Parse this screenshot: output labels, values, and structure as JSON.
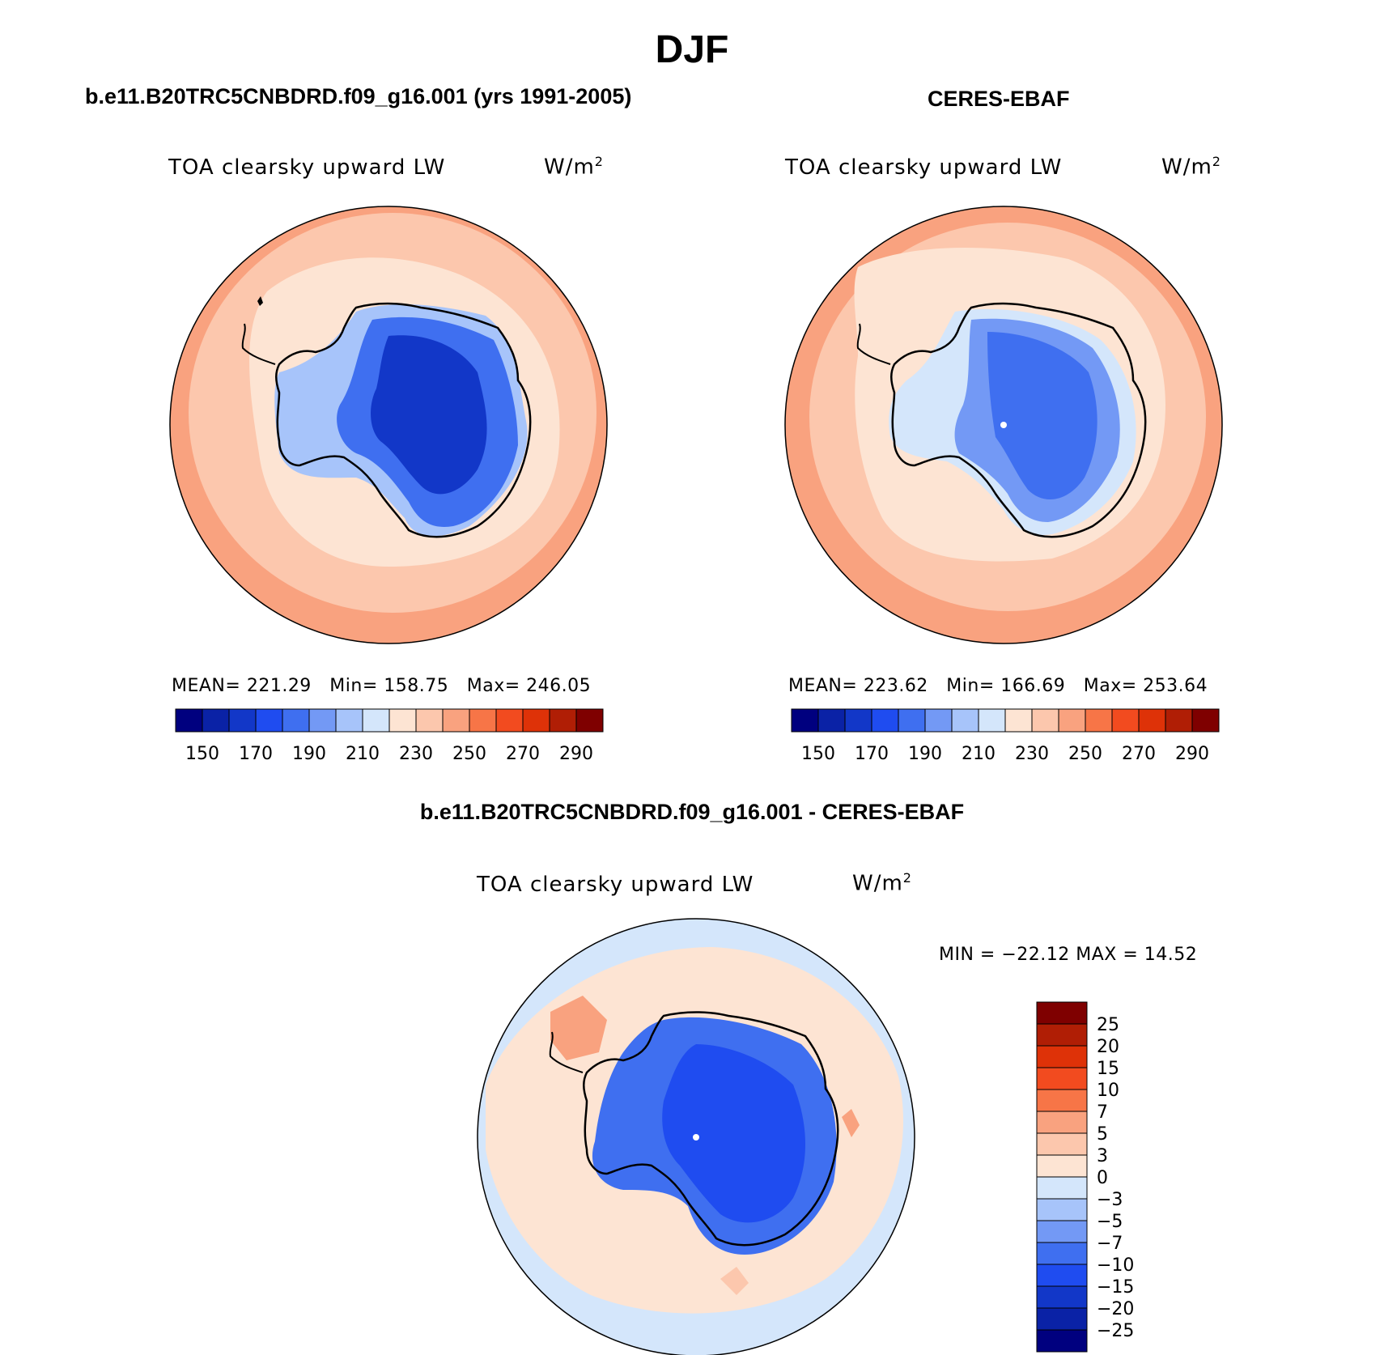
{
  "header": {
    "title": "DJF"
  },
  "panels": {
    "model": {
      "title": "b.e11.B20TRC5CNBDRD.f09_g16.001 (yrs 1991-2005)",
      "variable": "TOA clearsky upward LW",
      "units": "W/m",
      "units_exp": "2",
      "stats": {
        "mean_label": "MEAN=",
        "mean": "221.29",
        "min_label": "Min=",
        "min": "158.75",
        "max_label": "Max=",
        "max": "246.05"
      }
    },
    "obs": {
      "title": "CERES-EBAF",
      "variable": "TOA clearsky upward LW",
      "units": "W/m",
      "units_exp": "2",
      "stats": {
        "mean_label": "MEAN=",
        "mean": "223.62",
        "min_label": "Min=",
        "min": "166.69",
        "max_label": "Max=",
        "max": "253.64"
      }
    },
    "diff": {
      "title": "b.e11.B20TRC5CNBDRD.f09_g16.001 - CERES-EBAF",
      "variable": "TOA clearsky upward LW",
      "units": "W/m",
      "units_exp": "2",
      "minmax": "MIN = −22.12 MAX =  14.52"
    }
  },
  "chart_data": [
    {
      "type": "heatmap",
      "projection": "south-polar-stereographic",
      "title": "b.e11.B20TRC5CNBDRD.f09_g16.001 (yrs 1991-2005)",
      "variable": "TOA clearsky upward LW",
      "units": "W/m2",
      "mean": 221.29,
      "min": 158.75,
      "max": 246.05,
      "levels": [
        150,
        160,
        170,
        180,
        190,
        200,
        210,
        220,
        230,
        240,
        250,
        260,
        270,
        280,
        290
      ],
      "colorbar_ticks": [
        "150",
        "170",
        "190",
        "210",
        "230",
        "250",
        "270",
        "290"
      ]
    },
    {
      "type": "heatmap",
      "projection": "south-polar-stereographic",
      "title": "CERES-EBAF",
      "variable": "TOA clearsky upward LW",
      "units": "W/m2",
      "mean": 223.62,
      "min": 166.69,
      "max": 253.64,
      "levels": [
        150,
        160,
        170,
        180,
        190,
        200,
        210,
        220,
        230,
        240,
        250,
        260,
        270,
        280,
        290
      ],
      "colorbar_ticks": [
        "150",
        "170",
        "190",
        "210",
        "230",
        "250",
        "270",
        "290"
      ]
    },
    {
      "type": "heatmap",
      "projection": "south-polar-stereographic",
      "title": "b.e11.B20TRC5CNBDRD.f09_g16.001 - CERES-EBAF",
      "variable": "TOA clearsky upward LW",
      "units": "W/m2",
      "min": -22.12,
      "max": 14.52,
      "levels": [
        -25,
        -20,
        -15,
        -10,
        -7,
        -5,
        -3,
        0,
        3,
        5,
        7,
        10,
        15,
        20,
        25
      ],
      "colorbar_ticks": [
        "25",
        "20",
        "15",
        "10",
        "7",
        "5",
        "3",
        "0",
        "−3",
        "−5",
        "−7",
        "−10",
        "−15",
        "−20",
        "−25"
      ]
    }
  ],
  "colors": {
    "palette": [
      "#00007f",
      "#0a22a6",
      "#1237c8",
      "#1f4cf0",
      "#3f6ff0",
      "#7399f5",
      "#a7c4fa",
      "#d4e6fb",
      "#fde4d3",
      "#fcc7ad",
      "#f9a27f",
      "#f77547",
      "#f24b1f",
      "#de3208",
      "#b01e05",
      "#7f0000"
    ],
    "ocean_model": "#fcc7ad",
    "ocean_obs": "#fcc7ad",
    "diff_ocean": "#fde4d3"
  }
}
